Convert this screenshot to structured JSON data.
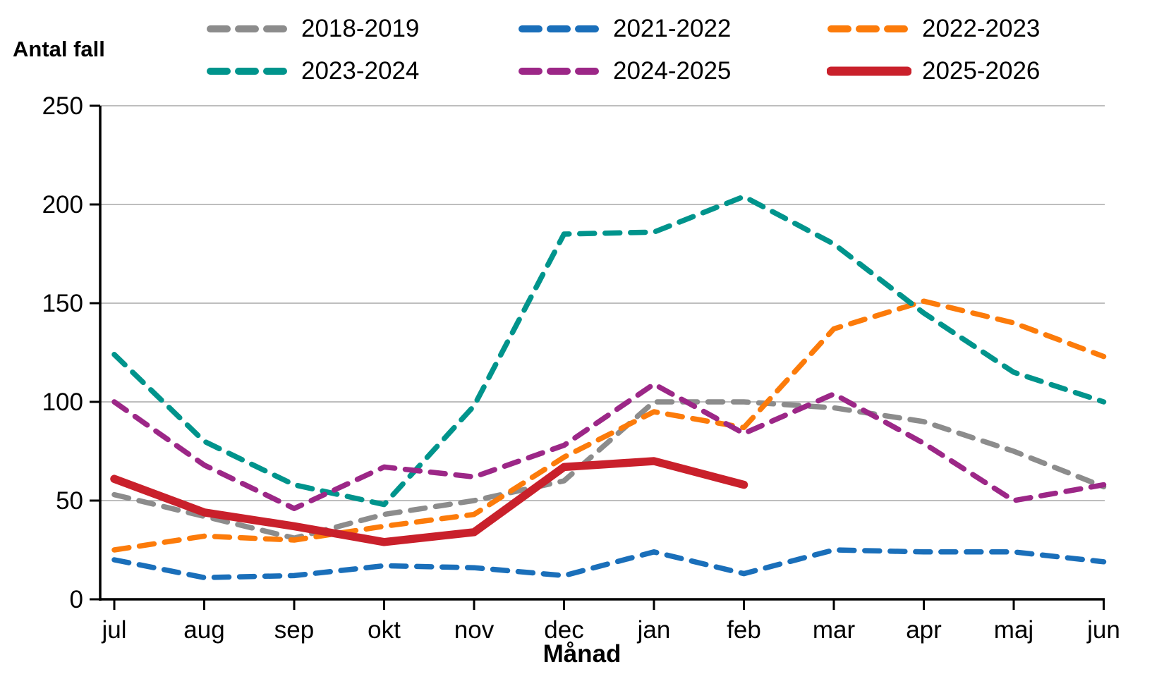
{
  "page": {
    "background": "#ffffff",
    "y_axis_title": "Antal fall",
    "x_axis_title": "Månad"
  },
  "chart_data": {
    "type": "line",
    "title": "",
    "ylabel": "Antal fall",
    "xlabel": "Månad",
    "categories": [
      "jul",
      "aug",
      "sep",
      "okt",
      "nov",
      "dec",
      "jan",
      "feb",
      "mar",
      "apr",
      "maj",
      "jun"
    ],
    "ylim": [
      0,
      250
    ],
    "yticks": [
      0,
      50,
      100,
      150,
      200,
      250
    ],
    "grid": "horizontal",
    "grid_color": "#a8a8a8",
    "axis_color": "#000000",
    "legend_position": "top",
    "series": [
      {
        "name": "2018-2019",
        "color": "#8c8c8c",
        "style": "dashed",
        "values": [
          53,
          42,
          31,
          43,
          50,
          60,
          100,
          100,
          97,
          90,
          75,
          57
        ]
      },
      {
        "name": "2021-2022",
        "color": "#1a6fba",
        "style": "dashed",
        "values": [
          20,
          11,
          12,
          17,
          16,
          12,
          24,
          13,
          25,
          24,
          24,
          19
        ]
      },
      {
        "name": "2022-2023",
        "color": "#fc7b0a",
        "style": "dashed",
        "values": [
          25,
          32,
          30,
          37,
          43,
          72,
          95,
          87,
          137,
          151,
          140,
          123
        ]
      },
      {
        "name": "2023-2024",
        "color": "#00948c",
        "style": "dashed",
        "values": [
          124,
          80,
          58,
          48,
          98,
          185,
          186,
          204,
          180,
          145,
          115,
          100
        ]
      },
      {
        "name": "2024-2025",
        "color": "#9c2787",
        "style": "dashed",
        "values": [
          100,
          68,
          46,
          67,
          62,
          78,
          109,
          84,
          104,
          79,
          50,
          58
        ]
      },
      {
        "name": "2025-2026",
        "color": "#c9202b",
        "style": "solid",
        "values": [
          61,
          44,
          37,
          29,
          34,
          67,
          70,
          58,
          null,
          null,
          null,
          null
        ]
      }
    ]
  }
}
